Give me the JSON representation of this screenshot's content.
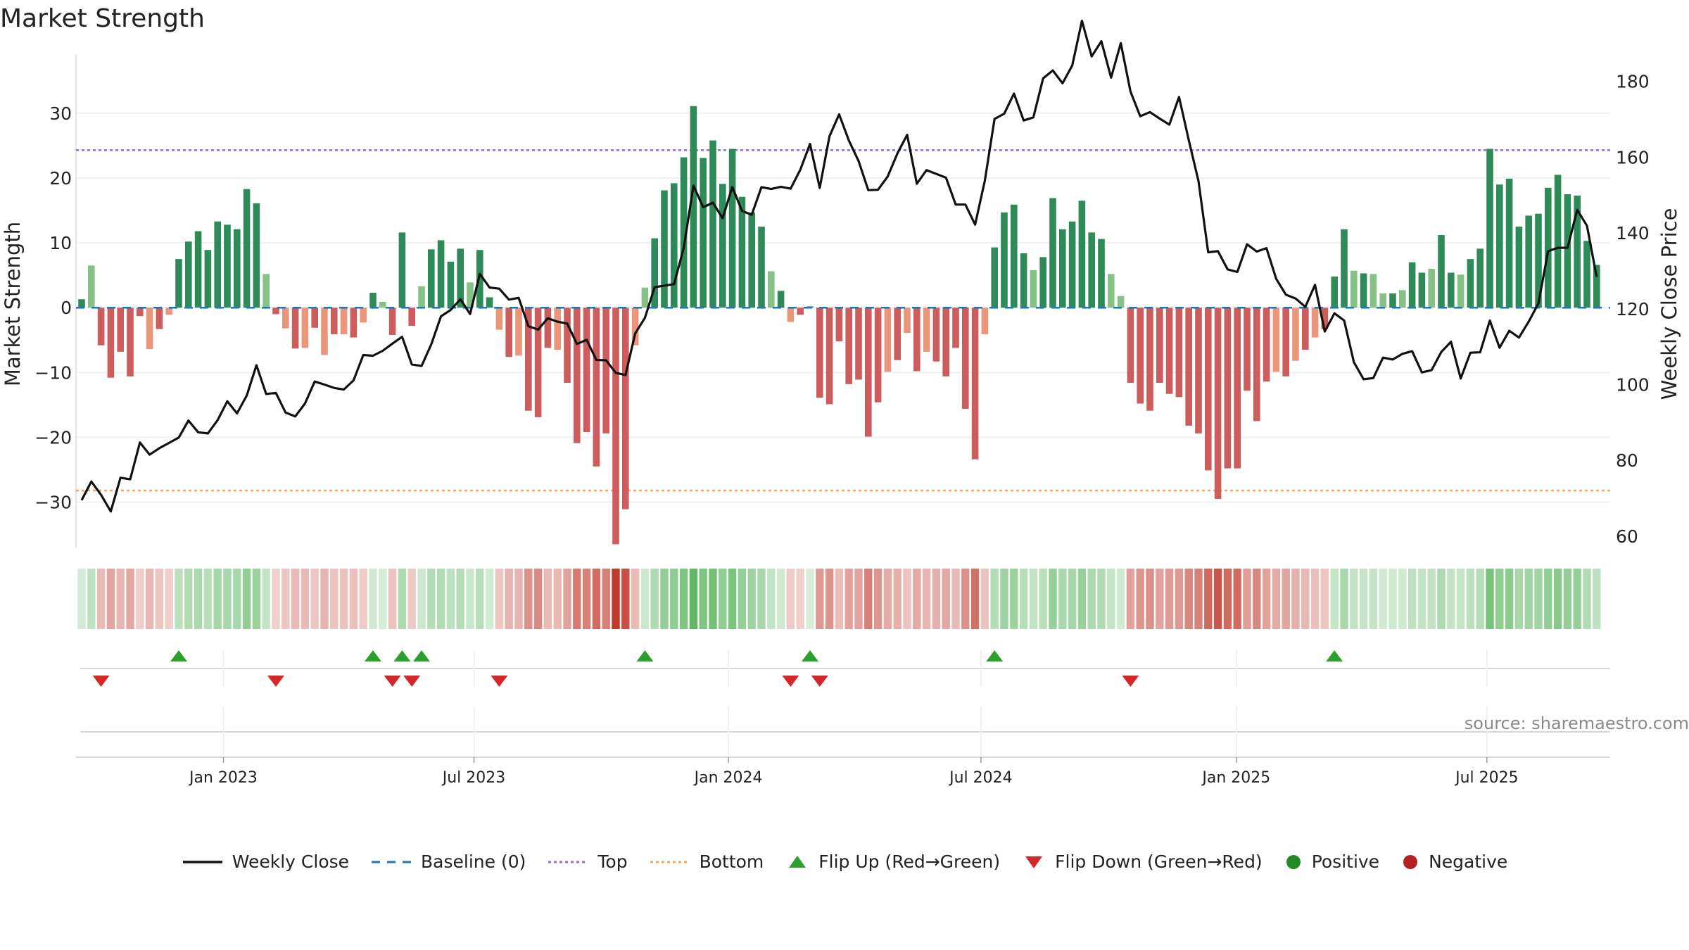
{
  "title": "Market Strength",
  "source": "source: sharemaestro.com",
  "colors": {
    "pos_strong": "#2e8b57",
    "pos_weak": "#86c285",
    "neg_strong": "#cd5c5c",
    "neg_weak": "#e9967a",
    "price": "#111111",
    "baseline": "#1f77b4",
    "top": "#9467bd",
    "bottom": "#f4a460",
    "flip_up": "#2ca02c",
    "flip_down": "#d62728",
    "positive_dot": "#228b22",
    "negative_dot": "#b22222"
  },
  "legend": [
    {
      "key": "weekly_close",
      "label": "Weekly Close"
    },
    {
      "key": "baseline",
      "label": "Baseline (0)"
    },
    {
      "key": "top",
      "label": "Top"
    },
    {
      "key": "bottom",
      "label": "Bottom"
    },
    {
      "key": "flip_up",
      "label": "Flip Up (Red→Green)"
    },
    {
      "key": "flip_down",
      "label": "Flip Down (Green→Red)"
    },
    {
      "key": "positive",
      "label": "Positive"
    },
    {
      "key": "negative",
      "label": "Negative"
    }
  ],
  "chart_data": {
    "type": "bar",
    "title": "Market Strength",
    "ylabel": "Market Strength",
    "y2label": "Weekly Close Price",
    "ylim": [
      -37,
      39
    ],
    "y_ticks": [
      30,
      20,
      10,
      0,
      -10,
      -20,
      -30
    ],
    "y_tick_labels": [
      "30",
      "20",
      "10",
      "0",
      "−10",
      "−20",
      "−30"
    ],
    "y2lim": [
      57,
      187
    ],
    "y2_ticks": [
      180,
      160,
      140,
      120,
      100,
      80,
      60
    ],
    "x_ticks": [
      "Jan 2023",
      "Jul 2023",
      "Jan 2024",
      "Jul 2024",
      "Jan 2025",
      "Jul 2025"
    ],
    "x_tick_week_index": [
      14.6,
      40.4,
      66.6,
      92.6,
      118.9,
      144.7
    ],
    "top_threshold": 24.3,
    "bottom_threshold": -28.2,
    "baseline": 0,
    "strength": [
      1.3,
      6.5,
      -5.8,
      -10.8,
      -6.8,
      -10.6,
      -1.3,
      -6.4,
      -3.3,
      -1.1,
      7.5,
      10.2,
      11.8,
      8.9,
      13.3,
      12.8,
      12.1,
      18.3,
      16.1,
      5.2,
      -1,
      -3.2,
      -6.3,
      -6.2,
      -3.1,
      -7.3,
      -4.1,
      -4.1,
      -4.6,
      -2.3,
      2.3,
      0.9,
      -4.2,
      11.6,
      -2.8,
      3.3,
      9,
      10.4,
      7.1,
      9.1,
      3.9,
      8.9,
      1.6,
      -3.4,
      -7.6,
      -7.4,
      -15.9,
      -16.9,
      -6.2,
      -6.5,
      -11.6,
      -20.9,
      -19.2,
      -24.5,
      -19.4,
      -36.5,
      -31.1,
      -5.8,
      3.1,
      10.7,
      18.1,
      19.2,
      23.2,
      31.1,
      23.1,
      25.8,
      19.1,
      24.5,
      17.1,
      14.7,
      12.5,
      5.6,
      2.6,
      -2.2,
      -1.1,
      0.2,
      -13.9,
      -14.9,
      -5.2,
      -11.8,
      -11.1,
      -19.9,
      -14.6,
      -9.9,
      -8.1,
      -3.9,
      -9.8,
      -6.8,
      -8.3,
      -10.6,
      -6.2,
      -15.6,
      -23.4,
      -4.1,
      9.3,
      14.7,
      15.9,
      8.4,
      5.8,
      7.8,
      16.9,
      12.1,
      13.3,
      16.5,
      11.6,
      10.6,
      5.2,
      1.8,
      -11.6,
      -14.8,
      -15.9,
      -11.6,
      -13.3,
      -13.8,
      -18.2,
      -19.4,
      -25.1,
      -29.5,
      -24.8,
      -24.8,
      -12.8,
      -17.5,
      -11.4,
      -9.9,
      -10.6,
      -8.2,
      -6.5,
      -4.6,
      -3.3,
      4.8,
      12.1,
      5.7,
      5.3,
      5.2,
      2.2,
      2.2,
      2.7,
      7,
      5.4,
      6,
      11.2,
      5.4,
      5.1,
      7.5,
      9.1,
      24.5,
      19,
      19.9,
      12.5,
      14.2,
      14.5,
      18.5,
      20.5,
      17.5,
      17.3,
      10.3,
      6.6
    ],
    "weekly_close": [
      69.5,
      74.4,
      70.9,
      66.5,
      75.4,
      75,
      84.7,
      81.5,
      83.2,
      84.6,
      86,
      90.5,
      87.4,
      87.1,
      90.6,
      95.6,
      92.4,
      97.1,
      105.1,
      97.5,
      97.8,
      92.6,
      91.6,
      95,
      100.8,
      100,
      99.1,
      98.7,
      101.1,
      107.8,
      107.6,
      108.9,
      110.8,
      112.6,
      105.3,
      104.9,
      110.6,
      118,
      119.7,
      122.5,
      118.6,
      129.2,
      125.6,
      125.3,
      122.4,
      122.9,
      115.4,
      114.5,
      117.5,
      116.6,
      116.1,
      110.7,
      111.8,
      106.5,
      106.4,
      103.1,
      102.5,
      113.5,
      117.6,
      125.7,
      126.1,
      126.5,
      136.1,
      152.5,
      146.8,
      148,
      143.9,
      152.1,
      145.8,
      144.8,
      152.1,
      151.6,
      152.2,
      151.7,
      156.7,
      163.5,
      151.9,
      165.5,
      171.3,
      164.4,
      159,
      151.3,
      151.4,
      154.9,
      161,
      165.9,
      153,
      156.6,
      155.6,
      154.6,
      147.5,
      147.5,
      142.2,
      153.8,
      170.1,
      171.5,
      176.8,
      169.7,
      170.5,
      180.8,
      182.9,
      179.5,
      184.2,
      196,
      186.6,
      190.6,
      181,
      190.1,
      177.3,
      170.8,
      171.9,
      170.2,
      168.6,
      175.9,
      164.5,
      153.7,
      134.9,
      135.2,
      130.4,
      129.7,
      137,
      135.1,
      136,
      127.9,
      123.7,
      122.7,
      120.5,
      126.3,
      114,
      118.8,
      116.9,
      105.9,
      101.4,
      101.7,
      107.1,
      106.6,
      108.1,
      108.8,
      103.2,
      103.8,
      108.6,
      111.3,
      101.6,
      108.4,
      108.5,
      116.9,
      109.7,
      114.2,
      112.4,
      116.6,
      121.4,
      135.2,
      136.1,
      136.1,
      146.1,
      141.9,
      128.4
    ],
    "flips_up_week_index": [
      10,
      30,
      33,
      35,
      58,
      75,
      94,
      129
    ],
    "flips_down_week_index": [
      2,
      20,
      32,
      34,
      43,
      73,
      76,
      108
    ]
  }
}
